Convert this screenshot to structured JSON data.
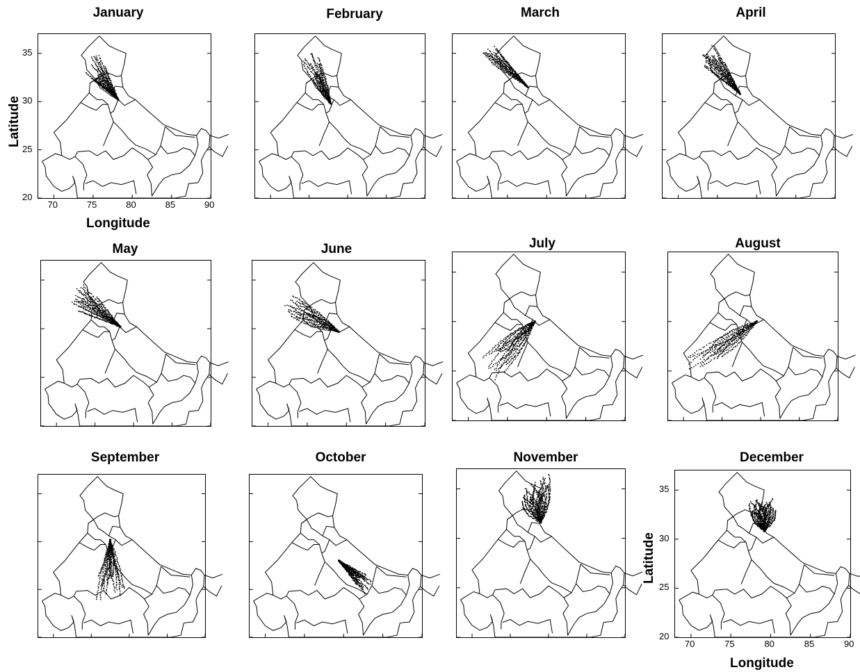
{
  "panels": [
    {
      "title": "January"
    },
    {
      "title": "February"
    },
    {
      "title": "March"
    },
    {
      "title": "April"
    },
    {
      "title": "May"
    },
    {
      "title": "June"
    },
    {
      "title": "July"
    },
    {
      "title": "August"
    },
    {
      "title": "September"
    },
    {
      "title": "October"
    },
    {
      "title": "November"
    },
    {
      "title": "December"
    }
  ],
  "axes": {
    "xlabel": "Longitude",
    "ylabel": "Latitude",
    "xticks": [
      "70",
      "75",
      "80",
      "85",
      "90"
    ],
    "yticks": [
      "20",
      "25",
      "30",
      "35"
    ],
    "xlim": [
      68,
      90
    ],
    "ylim": [
      20,
      37
    ]
  },
  "colors": {
    "boundary": "#000000",
    "trajectory": "#000000",
    "background": "#ffffff"
  }
}
